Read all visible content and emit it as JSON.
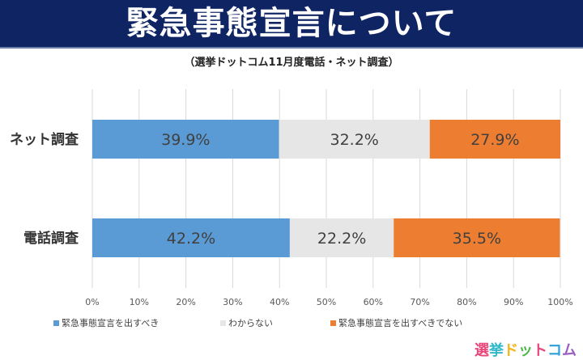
{
  "header": {
    "title": "緊急事態宣言について",
    "subtitle": "（選挙ドットコム11月度電話・ネット調査）"
  },
  "logo": {
    "text": "選挙ドットコム",
    "chars": [
      "選",
      "挙",
      "ド",
      "ッ",
      "ト",
      "コ",
      "ム"
    ],
    "colors": [
      "#e8457a",
      "#2fb8c9",
      "#f5b21a",
      "#4cb848",
      "#e8457a",
      "#2b9fd9",
      "#9b5fc0"
    ]
  },
  "chart_data": {
    "type": "bar",
    "orientation": "horizontal",
    "stacked": true,
    "title": "緊急事態宣言について",
    "subtitle": "（選挙ドットコム11月度電話・ネット調査）",
    "categories": [
      "ネット調査",
      "電話調査"
    ],
    "series": [
      {
        "name": "緊急事態宣言を出すべき",
        "color": "#5b9bd5",
        "values": [
          39.9,
          42.2
        ],
        "labels": [
          "39.9%",
          "42.2%"
        ]
      },
      {
        "name": "わからない",
        "color": "#e7e6e6",
        "values": [
          32.2,
          22.2
        ],
        "labels": [
          "32.2%",
          "22.2%"
        ]
      },
      {
        "name": "緊急事態宣言を出すべきでない",
        "color": "#ed7d31",
        "values": [
          27.9,
          35.5
        ],
        "labels": [
          "27.9%",
          "35.5%"
        ]
      }
    ],
    "xlim": [
      0,
      100
    ],
    "xticks": [
      "0%",
      "10%",
      "20%",
      "30%",
      "40%",
      "50%",
      "60%",
      "70%",
      "80%",
      "90%",
      "100%"
    ],
    "grid": true,
    "legend_position": "bottom"
  }
}
